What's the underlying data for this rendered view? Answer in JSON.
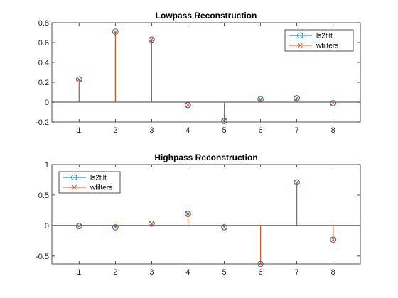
{
  "figure": {
    "background": "#ffffff"
  },
  "chart_data": [
    {
      "type": "stem",
      "title": "Lowpass Reconstruction",
      "xlabel": "",
      "ylabel": "",
      "x": [
        1,
        2,
        3,
        4,
        5,
        6,
        7,
        8
      ],
      "xlim": [
        0.25,
        8.75
      ],
      "ylim": [
        -0.2,
        0.8
      ],
      "xticks": [
        1,
        2,
        3,
        4,
        5,
        6,
        7,
        8
      ],
      "yticks": [
        -0.2,
        0,
        0.2,
        0.4,
        0.6,
        0.8
      ],
      "ytick_labels": [
        "-0.2",
        "0",
        "0.2",
        "0.4",
        "0.6",
        "0.8"
      ],
      "baseline": 0,
      "grid": false,
      "legend_position": "top-right",
      "series": [
        {
          "name": "ls2filt",
          "marker": "o",
          "color": "#0072BD",
          "values": [
            0.23,
            0.71,
            0.63,
            -0.03,
            -0.19,
            0.03,
            0.04,
            -0.01
          ]
        },
        {
          "name": "wfilters",
          "marker": "x",
          "color": "#D95319",
          "values": [
            0.23,
            0.71,
            0.63,
            -0.03,
            -0.19,
            0.03,
            0.04,
            -0.01
          ]
        }
      ]
    },
    {
      "type": "stem",
      "title": "Highpass Reconstruction",
      "xlabel": "",
      "ylabel": "",
      "x": [
        1,
        2,
        3,
        4,
        5,
        6,
        7,
        8
      ],
      "xlim": [
        0.25,
        8.75
      ],
      "ylim": [
        -0.63,
        1
      ],
      "xticks": [
        1,
        2,
        3,
        4,
        5,
        6,
        7,
        8
      ],
      "yticks": [
        -0.5,
        0,
        0.5,
        1
      ],
      "ytick_labels": [
        "-0.5",
        "0",
        "0.5",
        "1"
      ],
      "baseline": 0,
      "grid": false,
      "legend_position": "top-left",
      "series": [
        {
          "name": "ls2filt",
          "marker": "o",
          "color": "#0072BD",
          "values": [
            -0.01,
            -0.03,
            0.03,
            0.19,
            -0.03,
            -0.63,
            0.71,
            -0.23
          ]
        },
        {
          "name": "wfilters",
          "marker": "x",
          "color": "#D95319",
          "values": [
            -0.01,
            -0.03,
            0.03,
            0.19,
            -0.03,
            -0.63,
            0.71,
            -0.23
          ]
        }
      ]
    }
  ]
}
